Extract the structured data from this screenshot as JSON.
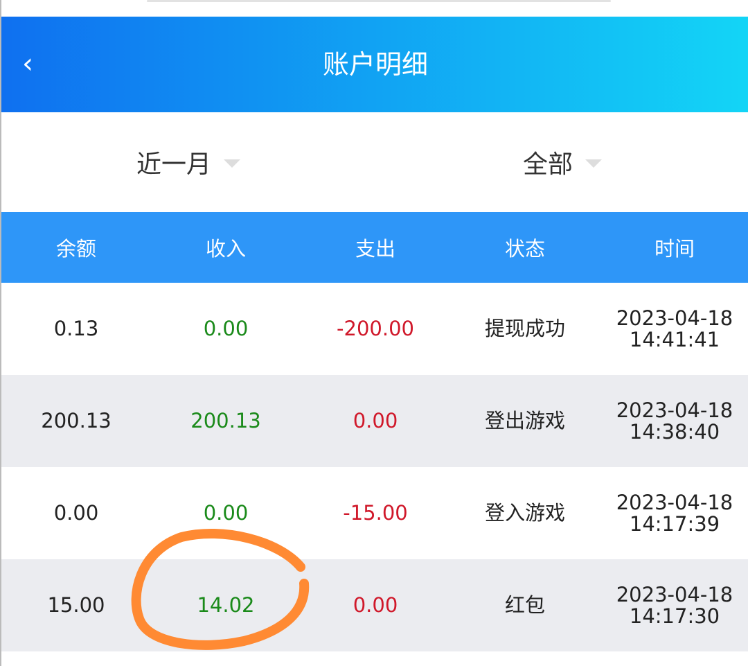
{
  "header": {
    "title": "账户明细",
    "back_icon": "chevron-left-icon"
  },
  "filters": [
    {
      "label": "近一月"
    },
    {
      "label": "全部"
    }
  ],
  "columns": [
    "余额",
    "收入",
    "支出",
    "状态",
    "时间"
  ],
  "rows": [
    {
      "balance": "0.13",
      "income": "0.00",
      "expense": "-200.00",
      "status": "提现成功",
      "date": "2023-04-18",
      "time": "14:41:41"
    },
    {
      "balance": "200.13",
      "income": "200.13",
      "expense": "0.00",
      "status": "登出游戏",
      "date": "2023-04-18",
      "time": "14:38:40"
    },
    {
      "balance": "0.00",
      "income": "0.00",
      "expense": "-15.00",
      "status": "登入游戏",
      "date": "2023-04-18",
      "time": "14:17:39"
    },
    {
      "balance": "15.00",
      "income": "14.02",
      "expense": "0.00",
      "status": "红包",
      "date": "2023-04-18",
      "time": "14:17:30"
    }
  ],
  "colors": {
    "header_start": "#0f70f0",
    "header_end": "#13d5f6",
    "table_header": "#2e96f8",
    "income": "#1a8a1a",
    "expense": "#d0182a",
    "annotation": "#ff8a33"
  }
}
